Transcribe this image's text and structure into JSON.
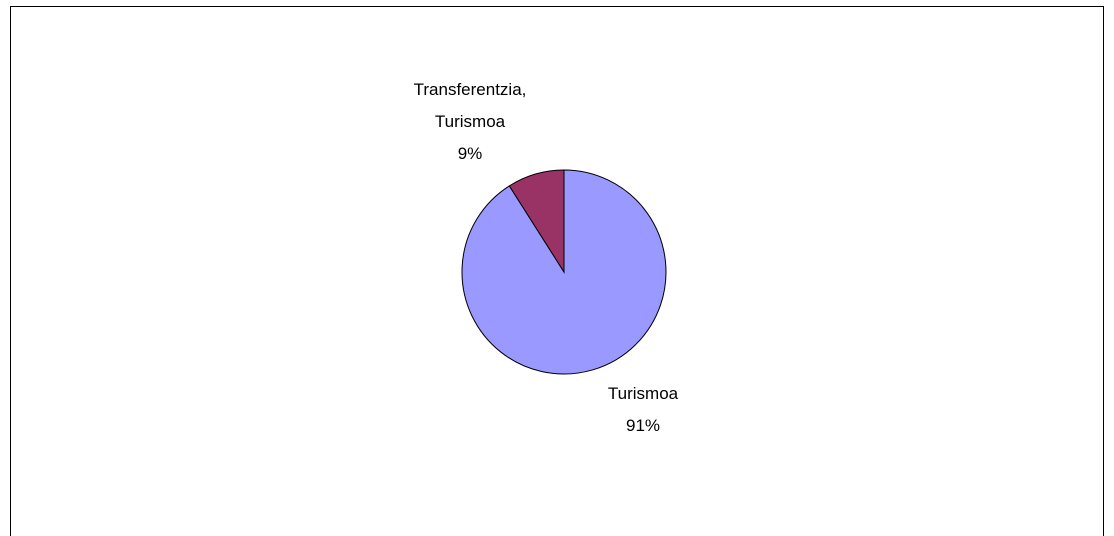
{
  "chart_data": {
    "type": "pie",
    "categories": [
      "Turismoa",
      "Transferentzia, Turismoa"
    ],
    "values": [
      91,
      9
    ],
    "value_labels": [
      "91%",
      "9%"
    ],
    "colors": [
      "#9999ff",
      "#993366"
    ]
  }
}
